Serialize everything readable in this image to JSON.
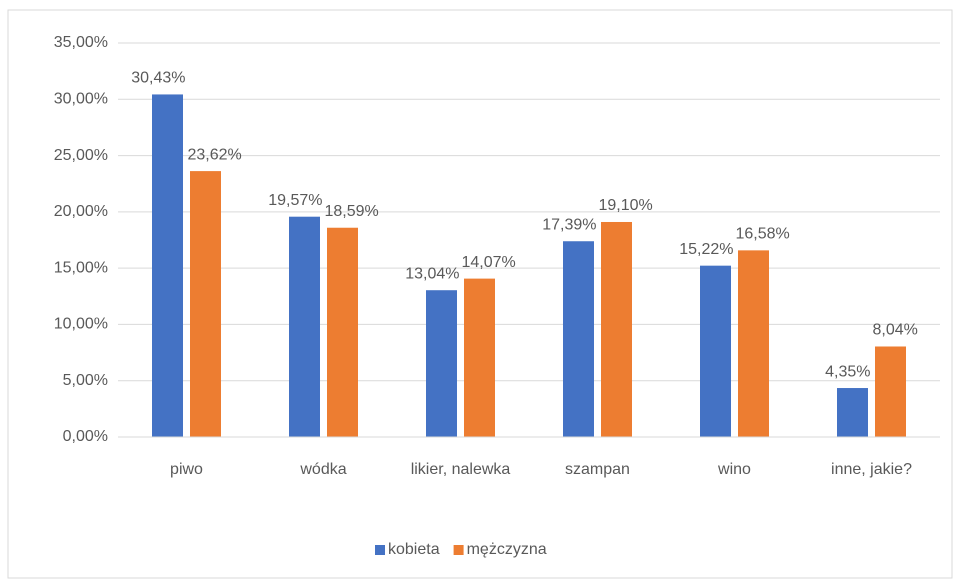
{
  "chart_data": {
    "type": "bar",
    "categories": [
      "piwo",
      "wódka",
      "likier, nalewka",
      "szampan",
      "wino",
      "inne, jakie?"
    ],
    "series": [
      {
        "name": "kobieta",
        "color": "#4472c4",
        "values": [
          30.43,
          19.57,
          13.04,
          17.39,
          15.22,
          4.35
        ],
        "value_labels": [
          "30,43%",
          "19,57%",
          "13,04%",
          "17,39%",
          "15,22%",
          "4,35%"
        ]
      },
      {
        "name": "mężczyzna",
        "color": "#ed7d31",
        "values": [
          23.62,
          18.59,
          14.07,
          19.1,
          16.58,
          8.04
        ],
        "value_labels": [
          "23,62%",
          "18,59%",
          "14,07%",
          "19,10%",
          "16,58%",
          "8,04%"
        ]
      }
    ],
    "ylim": [
      0,
      35
    ],
    "yticks": [
      {
        "value": 0,
        "label": "0,00%"
      },
      {
        "value": 5,
        "label": "5,00%"
      },
      {
        "value": 10,
        "label": "10,00%"
      },
      {
        "value": 15,
        "label": "15,00%"
      },
      {
        "value": 20,
        "label": "20,00%"
      },
      {
        "value": 25,
        "label": "25,00%"
      },
      {
        "value": 30,
        "label": "30,00%"
      },
      {
        "value": 35,
        "label": "35,00%"
      }
    ],
    "grid": true,
    "legend": "bottom"
  }
}
